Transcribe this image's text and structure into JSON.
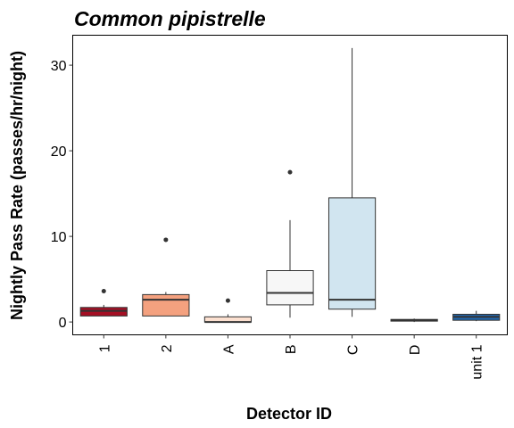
{
  "chart_data": {
    "type": "box",
    "title": "Common pipistrelle",
    "xlabel": "Detector ID",
    "ylabel": "Nightly Pass Rate (passes/hr/night)",
    "ylim": [
      -1.5,
      33.5
    ],
    "yticks": [
      0,
      10,
      20,
      30
    ],
    "grid": false,
    "legend": "none",
    "categories": [
      "1",
      "2",
      "A",
      "B",
      "C",
      "D",
      "unit 1"
    ],
    "boxes": [
      {
        "category": "1",
        "min": 0.7,
        "q1": 0.7,
        "median": 1.3,
        "q3": 1.7,
        "max": 2.0,
        "outliers": [
          3.6
        ],
        "color": "#a50f24"
      },
      {
        "category": "2",
        "min": 0.7,
        "q1": 0.7,
        "median": 2.6,
        "q3": 3.2,
        "max": 3.5,
        "outliers": [
          9.6
        ],
        "color": "#f4a17f"
      },
      {
        "category": "A",
        "min": 0.0,
        "q1": 0.0,
        "median": 0.0,
        "q3": 0.6,
        "max": 0.9,
        "outliers": [
          2.5
        ],
        "color": "#fce0d0"
      },
      {
        "category": "B",
        "min": 0.5,
        "q1": 2.0,
        "median": 3.4,
        "q3": 6.0,
        "max": 11.9,
        "outliers": [
          17.5
        ],
        "color": "#f7f7f7"
      },
      {
        "category": "C",
        "min": 0.6,
        "q1": 1.5,
        "median": 2.6,
        "q3": 14.5,
        "max": 32.0,
        "outliers": [],
        "color": "#d1e5f0"
      },
      {
        "category": "D",
        "min": 0.0,
        "q1": 0.1,
        "median": 0.2,
        "q3": 0.3,
        "max": 0.4,
        "outliers": [],
        "color": "#92c5de"
      },
      {
        "category": "unit 1",
        "min": 0.1,
        "q1": 0.2,
        "median": 0.6,
        "q3": 0.9,
        "max": 1.3,
        "outliers": [],
        "color": "#2166ac"
      }
    ]
  }
}
